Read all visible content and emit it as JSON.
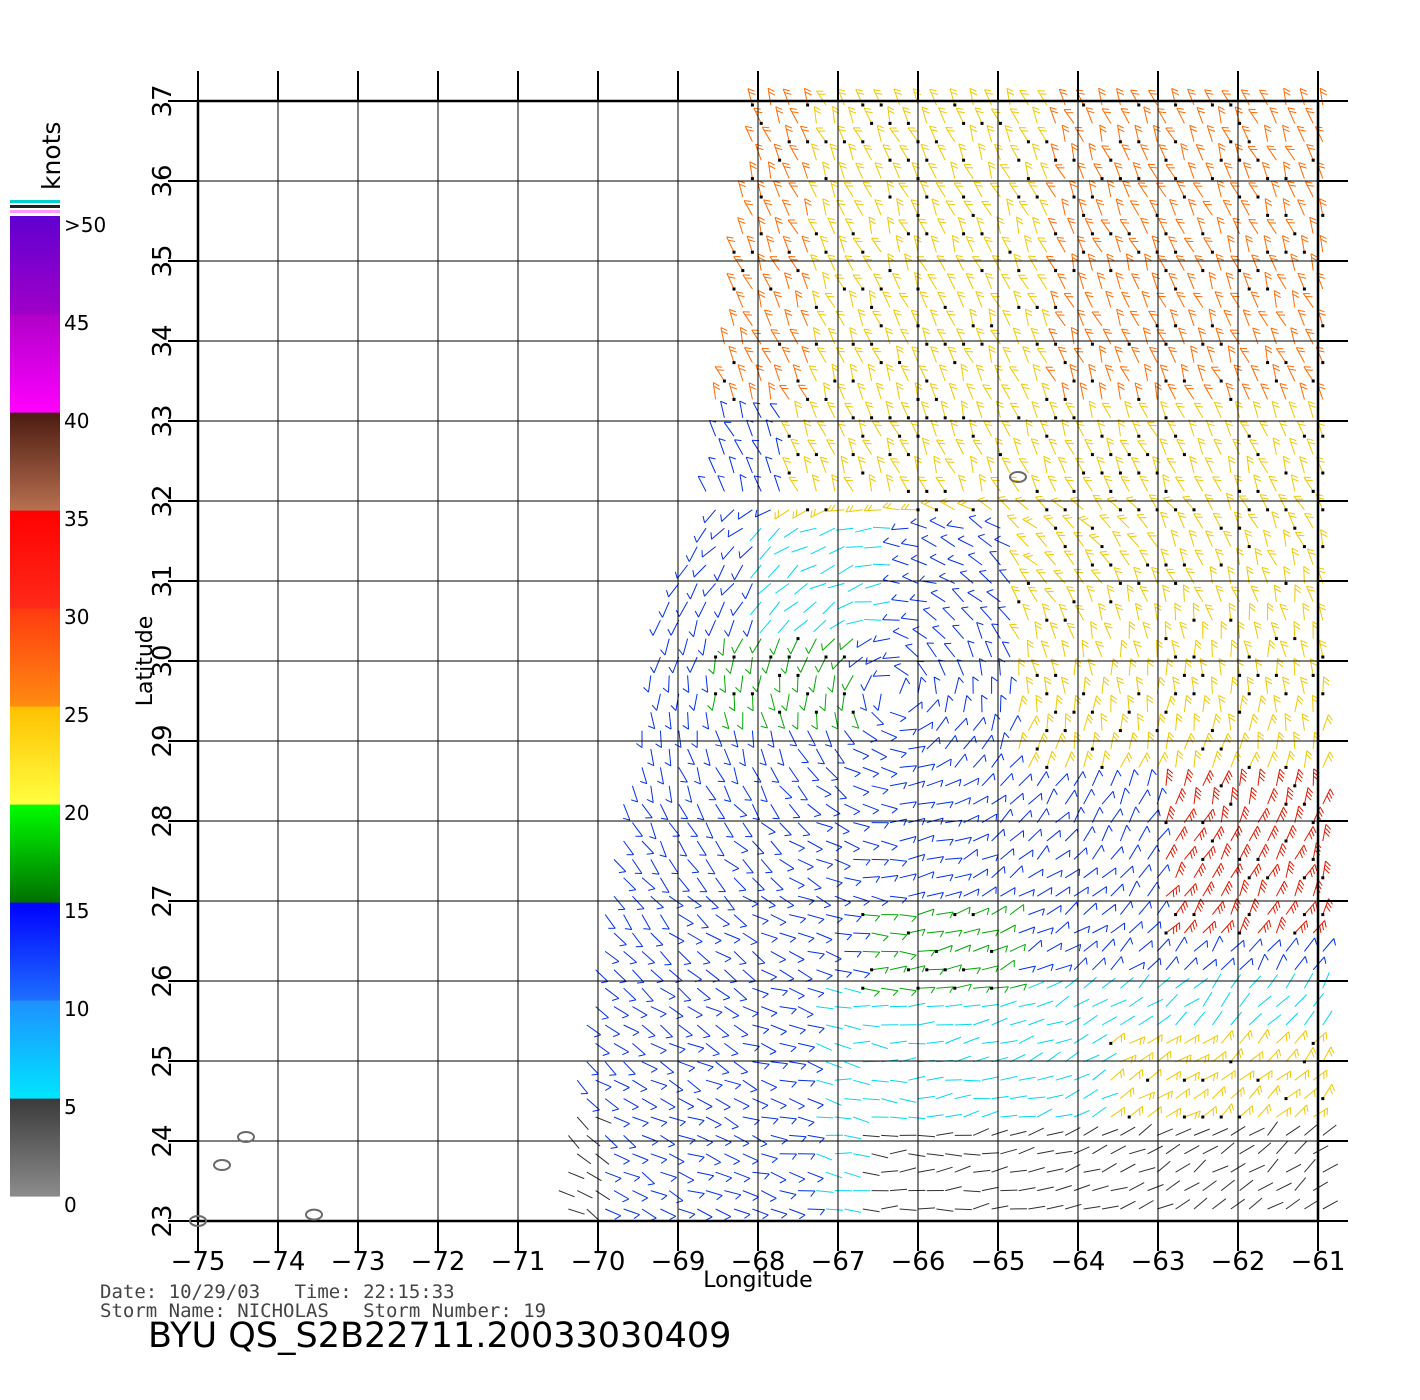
{
  "map": {
    "lon_range": [
      -75,
      -61
    ],
    "lat_range": [
      23,
      37
    ],
    "lon_ticks": [
      -75,
      -74,
      -73,
      -72,
      -71,
      -70,
      -69,
      -68,
      -67,
      -66,
      -65,
      -64,
      -63,
      -62,
      -61
    ],
    "lat_ticks": [
      23,
      24,
      25,
      26,
      27,
      28,
      29,
      30,
      31,
      32,
      33,
      34,
      35,
      36,
      37
    ],
    "xlabel": "Longitude",
    "ylabel": "Latitude",
    "grid": true,
    "islands": [
      {
        "lon": -64.75,
        "lat": 32.3
      },
      {
        "lon": -74.4,
        "lat": 24.05
      },
      {
        "lon": -74.7,
        "lat": 23.7
      },
      {
        "lon": -73.55,
        "lat": 23.08
      },
      {
        "lon": -75.0,
        "lat": 23.0
      }
    ]
  },
  "legend": {
    "unit": "knots",
    "labels": [
      ">50",
      "45",
      "40",
      "35",
      "30",
      "25",
      "20",
      "15",
      "10",
      "5",
      "0"
    ],
    "bands": [
      {
        "from": 0,
        "to": 5,
        "top": "#3a3a3a",
        "bottom": "#8c8c8c"
      },
      {
        "from": 5,
        "to": 10,
        "top": "#1e90ff",
        "bottom": "#00e5ff"
      },
      {
        "from": 10,
        "to": 15,
        "top": "#0000ff",
        "bottom": "#1e6fff"
      },
      {
        "from": 15,
        "to": 20,
        "top": "#00ff00",
        "bottom": "#007000"
      },
      {
        "from": 20,
        "to": 25,
        "top": "#ffc000",
        "bottom": "#ffff40"
      },
      {
        "from": 25,
        "to": 30,
        "top": "#ff3a10",
        "bottom": "#ff8c10"
      },
      {
        "from": 30,
        "to": 35,
        "top": "#ff0000",
        "bottom": "#ff2a1a"
      },
      {
        "from": 35,
        "to": 40,
        "top": "#4a1a10",
        "bottom": "#b87050"
      },
      {
        "from": 40,
        "to": 45,
        "top": "#b000c8",
        "bottom": "#ff00ff"
      },
      {
        "from": 45,
        "to": 50,
        "top": "#6000d0",
        "bottom": "#a000c8"
      }
    ],
    "top_stripes": [
      "#00d0d0",
      "#202020",
      "#ff9aff"
    ]
  },
  "wind_colors": {
    "calm": "#303030",
    "light": "#00d8f0",
    "moderate": "#0030e8",
    "fresh": "#00a800",
    "strong": "#f0c800",
    "gale": "#ff6a00",
    "storm": "#e01800"
  },
  "info": {
    "line1": "Date: 10/29/03   Time: 22:15:33",
    "line2": "Storm Name: NICHOLAS   Storm Number: 19",
    "product": "BYU QS_S2B22711.20033030409"
  }
}
